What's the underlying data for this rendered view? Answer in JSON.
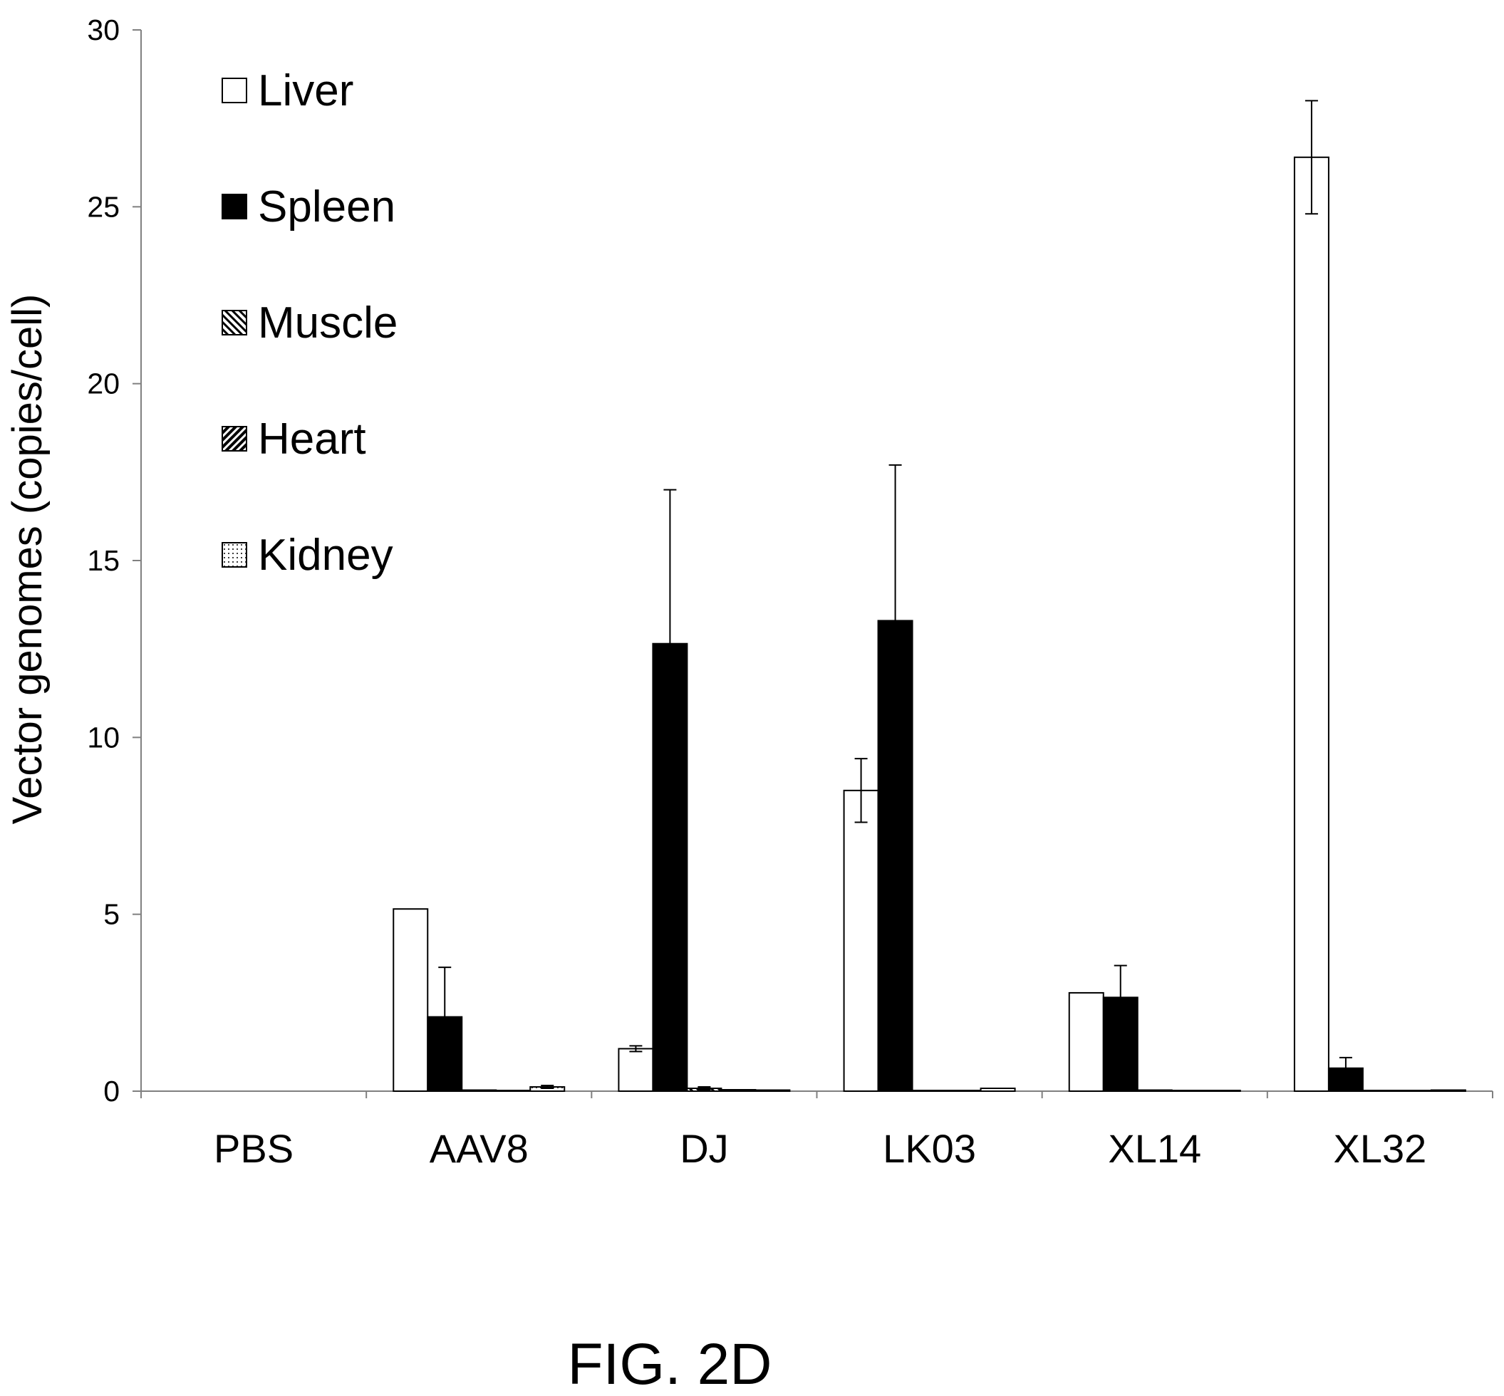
{
  "figure_label": "FIG. 2D",
  "colors": {
    "liver": "#ffffff",
    "spleen": "#000000",
    "muscle": "pattern-back-diagonal",
    "heart": "pattern-diagonal",
    "kidney": "pattern-dots",
    "axis": "#808080",
    "outline": "#000000"
  },
  "chart_data": {
    "type": "bar",
    "title": "",
    "xlabel": "",
    "ylabel": "Vector genomes (copies/cell)",
    "ylim": [
      0,
      30
    ],
    "yticks": [
      0,
      5,
      10,
      15,
      20,
      25,
      30
    ],
    "grid": false,
    "legend_position": "top-left",
    "categories": [
      "PBS",
      "AAV8",
      "DJ",
      "LK03",
      "XL14",
      "XL32"
    ],
    "series": [
      {
        "name": "Liver",
        "fill": "white",
        "values": [
          0,
          5.15,
          1.2,
          8.5,
          2.78,
          26.4
        ],
        "errors": [
          0,
          0,
          0.08,
          0.9,
          0,
          1.6
        ]
      },
      {
        "name": "Spleen",
        "fill": "black",
        "values": [
          0,
          2.1,
          12.65,
          13.3,
          2.65,
          0.65
        ],
        "errors": [
          0,
          1.4,
          4.35,
          4.4,
          0.9,
          0.3
        ]
      },
      {
        "name": "Muscle",
        "fill": "backslash",
        "values": [
          0,
          0.03,
          0.08,
          0.02,
          0.03,
          0.02
        ],
        "errors": [
          0,
          0,
          0.04,
          0,
          0,
          0
        ]
      },
      {
        "name": "Heart",
        "fill": "slash",
        "values": [
          0,
          0.02,
          0.04,
          0.02,
          0.02,
          0.02
        ],
        "errors": [
          0,
          0,
          0,
          0,
          0,
          0
        ]
      },
      {
        "name": "Kidney",
        "fill": "dots",
        "values": [
          0,
          0.12,
          0.03,
          0.08,
          0.02,
          0.03
        ],
        "errors": [
          0,
          0.04,
          0,
          0,
          0,
          0
        ]
      }
    ]
  }
}
